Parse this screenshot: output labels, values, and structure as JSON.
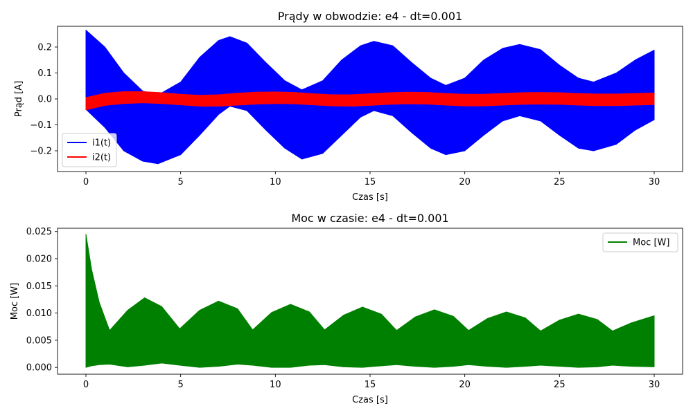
{
  "chart_data": [
    {
      "type": "area",
      "title": "Prądy w obwodzie: e4 - dt=0.001",
      "xlabel": "Czas [s]",
      "ylabel": "Prąd [A]",
      "xlim": [
        -1.5,
        31.5
      ],
      "ylim": [
        -0.28,
        0.28
      ],
      "xticks": [
        0,
        5,
        10,
        15,
        20,
        25,
        30
      ],
      "yticks": [
        -0.2,
        -0.1,
        0.0,
        0.1,
        0.2
      ],
      "ytick_labels": [
        "−0.2",
        "−0.1",
        "0.0",
        "0.1",
        "0.2"
      ],
      "grid": false,
      "legend": "lower-left",
      "series": [
        {
          "name": "i1(t)",
          "color": "#0000ff",
          "x": [
            0,
            1,
            2,
            3,
            3.8,
            5,
            6,
            7,
            7.6,
            8.5,
            9.5,
            10.5,
            11.4,
            12.5,
            13.5,
            14.5,
            15.2,
            16.2,
            17.2,
            18.2,
            19.0,
            20.0,
            21.0,
            22.0,
            22.9,
            24.0,
            25.0,
            26.0,
            26.8,
            28.0,
            29.0,
            30.0
          ],
          "upper": [
            0.265,
            0.2,
            0.1,
            0.03,
            0.015,
            0.065,
            0.16,
            0.225,
            0.24,
            0.215,
            0.14,
            0.07,
            0.035,
            0.07,
            0.15,
            0.205,
            0.222,
            0.205,
            0.14,
            0.08,
            0.052,
            0.08,
            0.15,
            0.195,
            0.21,
            0.19,
            0.13,
            0.08,
            0.065,
            0.1,
            0.15,
            0.188
          ],
          "lower": [
            -0.04,
            -0.11,
            -0.2,
            -0.24,
            -0.25,
            -0.215,
            -0.14,
            -0.06,
            -0.028,
            -0.045,
            -0.12,
            -0.19,
            -0.232,
            -0.21,
            -0.14,
            -0.07,
            -0.045,
            -0.065,
            -0.13,
            -0.19,
            -0.215,
            -0.2,
            -0.14,
            -0.085,
            -0.065,
            -0.085,
            -0.14,
            -0.19,
            -0.2,
            -0.175,
            -0.12,
            -0.08
          ]
        },
        {
          "name": "i2(t)",
          "color": "#ff0000",
          "x": [
            0,
            1,
            2,
            3,
            4,
            5,
            6,
            7,
            8,
            9,
            10,
            11,
            12,
            13,
            14,
            15,
            16,
            17,
            18,
            19,
            20,
            21,
            22,
            23,
            24,
            25,
            26,
            27,
            28,
            29,
            30
          ],
          "upper": [
            0.005,
            0.022,
            0.028,
            0.028,
            0.024,
            0.018,
            0.014,
            0.016,
            0.022,
            0.026,
            0.027,
            0.025,
            0.02,
            0.016,
            0.016,
            0.02,
            0.024,
            0.026,
            0.025,
            0.021,
            0.018,
            0.018,
            0.021,
            0.024,
            0.025,
            0.024,
            0.021,
            0.019,
            0.019,
            0.021,
            0.023
          ],
          "lower": [
            -0.042,
            -0.025,
            -0.018,
            -0.015,
            -0.018,
            -0.023,
            -0.028,
            -0.028,
            -0.024,
            -0.02,
            -0.018,
            -0.019,
            -0.023,
            -0.027,
            -0.028,
            -0.025,
            -0.021,
            -0.019,
            -0.02,
            -0.024,
            -0.027,
            -0.027,
            -0.024,
            -0.021,
            -0.02,
            -0.021,
            -0.024,
            -0.026,
            -0.026,
            -0.024,
            -0.022
          ]
        }
      ]
    },
    {
      "type": "area",
      "title": "Moc w czasie: e4 - dt=0.001",
      "xlabel": "Czas [s]",
      "ylabel": "Moc [W]",
      "xlim": [
        -1.5,
        31.5
      ],
      "ylim": [
        -0.00125,
        0.0256
      ],
      "xticks": [
        0,
        5,
        10,
        15,
        20,
        25,
        30
      ],
      "yticks": [
        0.0,
        0.005,
        0.01,
        0.015,
        0.02,
        0.025
      ],
      "ytick_labels": [
        "0.000",
        "0.005",
        "0.010",
        "0.015",
        "0.020",
        "0.025"
      ],
      "grid": false,
      "legend": "upper-right",
      "series": [
        {
          "name": "Moc [W]",
          "color": "#008000",
          "x": [
            0,
            0.3,
            0.7,
            1.25,
            2.2,
            3.1,
            4.0,
            4.95,
            6.0,
            7.0,
            8.0,
            8.8,
            9.8,
            10.8,
            11.8,
            12.6,
            13.6,
            14.6,
            15.6,
            16.4,
            17.4,
            18.4,
            19.4,
            20.2,
            21.2,
            22.2,
            23.2,
            24.0,
            25.0,
            26.0,
            27.0,
            27.8,
            28.8,
            30.0
          ],
          "upper": [
            0.0245,
            0.018,
            0.012,
            0.0068,
            0.0105,
            0.0128,
            0.0112,
            0.0071,
            0.0105,
            0.0122,
            0.0108,
            0.0069,
            0.0101,
            0.0116,
            0.0102,
            0.0069,
            0.0096,
            0.0111,
            0.0098,
            0.0068,
            0.0093,
            0.0106,
            0.0094,
            0.0068,
            0.009,
            0.0102,
            0.0091,
            0.0067,
            0.0087,
            0.0098,
            0.0088,
            0.0067,
            0.0082,
            0.0095
          ],
          "lower": [
            0.0,
            0.0003,
            0.0005,
            0.0006,
            0.0001,
            0.0004,
            0.0008,
            0.0004,
            0.0,
            0.0002,
            0.0006,
            0.0004,
            0.0,
            0.0,
            0.0004,
            0.0005,
            0.0001,
            0.0,
            0.0003,
            0.0005,
            0.0002,
            0.0,
            0.0002,
            0.0005,
            0.0002,
            0.0,
            0.0002,
            0.0004,
            0.0002,
            0.0,
            0.0001,
            0.0004,
            0.0002,
            0.0001
          ]
        }
      ]
    }
  ]
}
